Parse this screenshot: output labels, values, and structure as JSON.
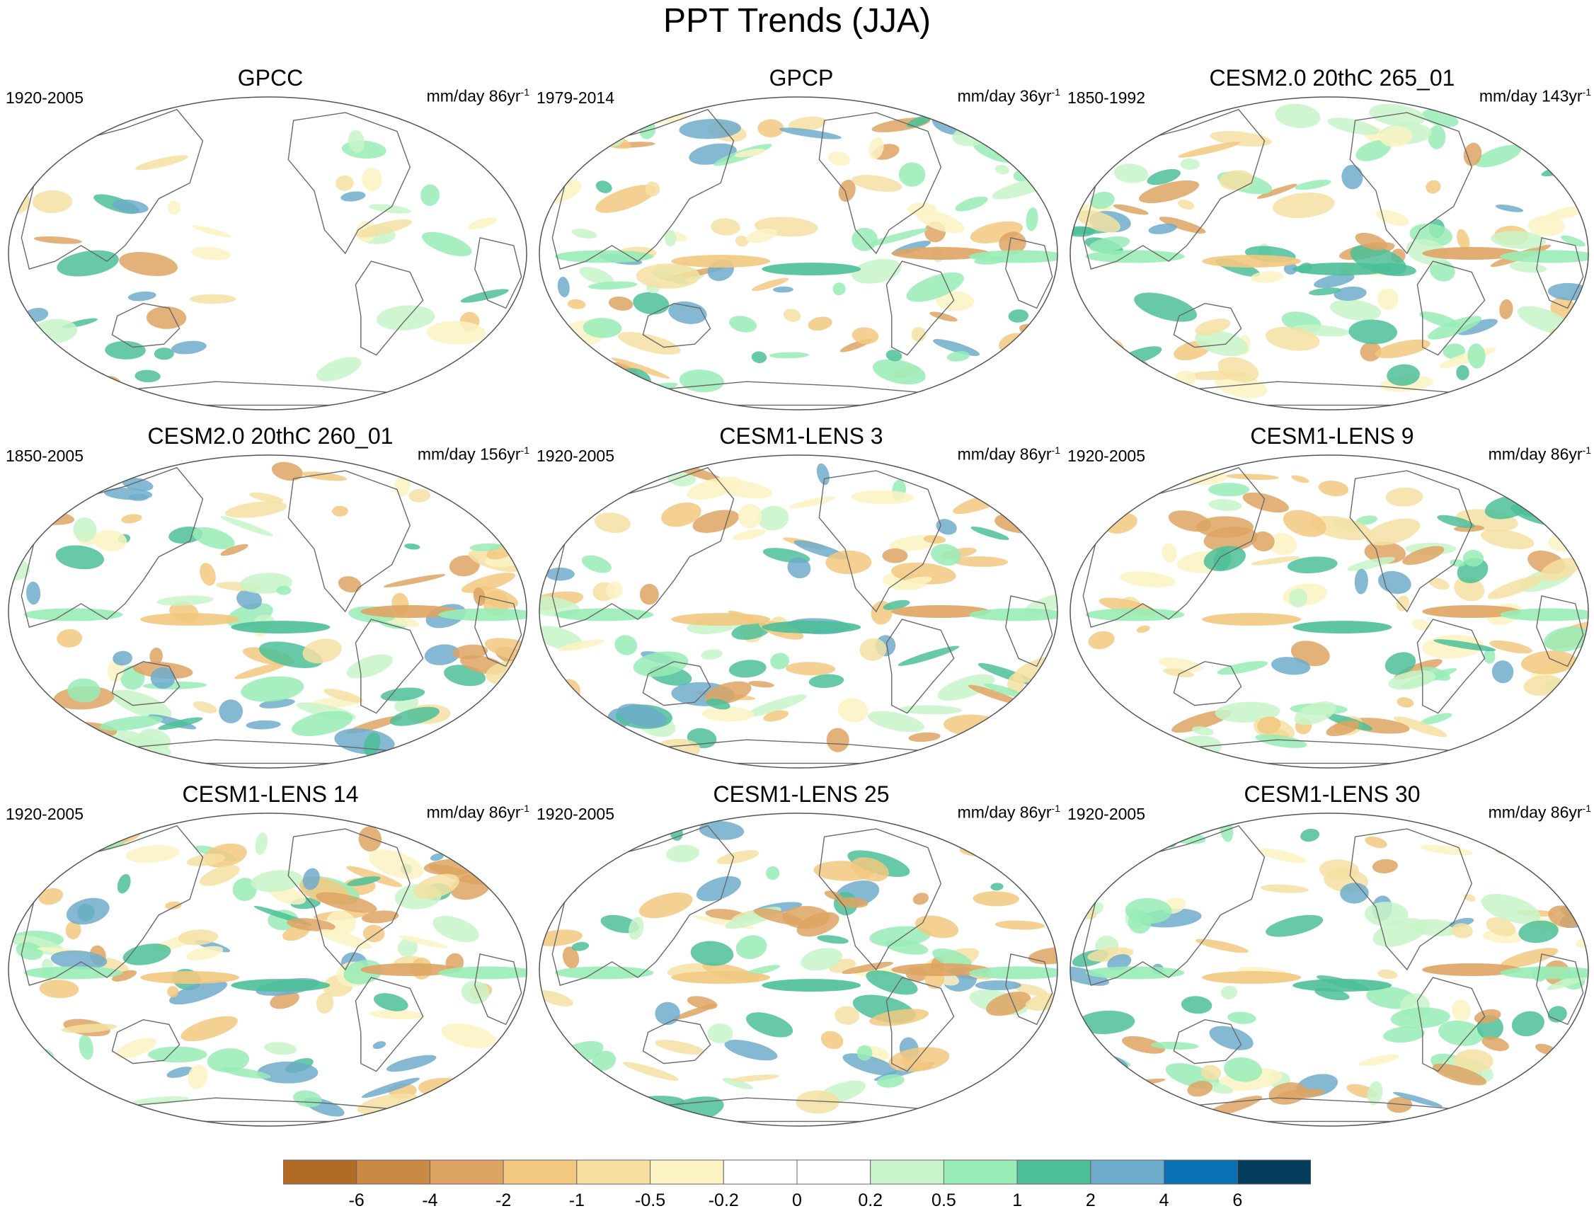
{
  "title": "PPT Trends (JJA)",
  "panels": [
    {
      "title": "GPCC",
      "period": "1920-2005",
      "units": "mm/day 86yr",
      "units_exp": "-1"
    },
    {
      "title": "GPCP",
      "period": "1979-2014",
      "units": "mm/day 36yr",
      "units_exp": "-1"
    },
    {
      "title": "CESM2.0 20thC 265_01",
      "period": "1850-1992",
      "units": "mm/day 143yr",
      "units_exp": "-1"
    },
    {
      "title": "CESM2.0 20thC 260_01",
      "period": "1850-2005",
      "units": "mm/day 156yr",
      "units_exp": "-1"
    },
    {
      "title": "CESM1-LENS 3",
      "period": "1920-2005",
      "units": "mm/day 86yr",
      "units_exp": "-1"
    },
    {
      "title": "CESM1-LENS 9",
      "period": "1920-2005",
      "units": "mm/day 86yr",
      "units_exp": "-1"
    },
    {
      "title": "CESM1-LENS 14",
      "period": "1920-2005",
      "units": "mm/day 86yr",
      "units_exp": "-1"
    },
    {
      "title": "CESM1-LENS 25",
      "period": "1920-2005",
      "units": "mm/day 86yr",
      "units_exp": "-1"
    },
    {
      "title": "CESM1-LENS 30",
      "period": "1920-2005",
      "units": "mm/day 86yr",
      "units_exp": "-1"
    }
  ],
  "colorbar": {
    "colors": [
      "#b26b24",
      "#cb8a43",
      "#dea463",
      "#f2c880",
      "#f5e0a2",
      "#fbf3c3",
      "#ffffff",
      "#ffffff",
      "#c8f5c9",
      "#98ecb6",
      "#4cbf98",
      "#6eaccb",
      "#0b6fb3",
      "#053d5c"
    ],
    "labels": [
      "-6",
      "-4",
      "-2",
      "-1",
      "-0.5",
      "-0.2",
      "0",
      "0.2",
      "0.5",
      "1",
      "2",
      "4",
      "6"
    ]
  },
  "colors": {
    "land_outline": "#6a6a6a",
    "map_border": "#555555"
  },
  "icons": [
    "world-map-outline"
  ]
}
